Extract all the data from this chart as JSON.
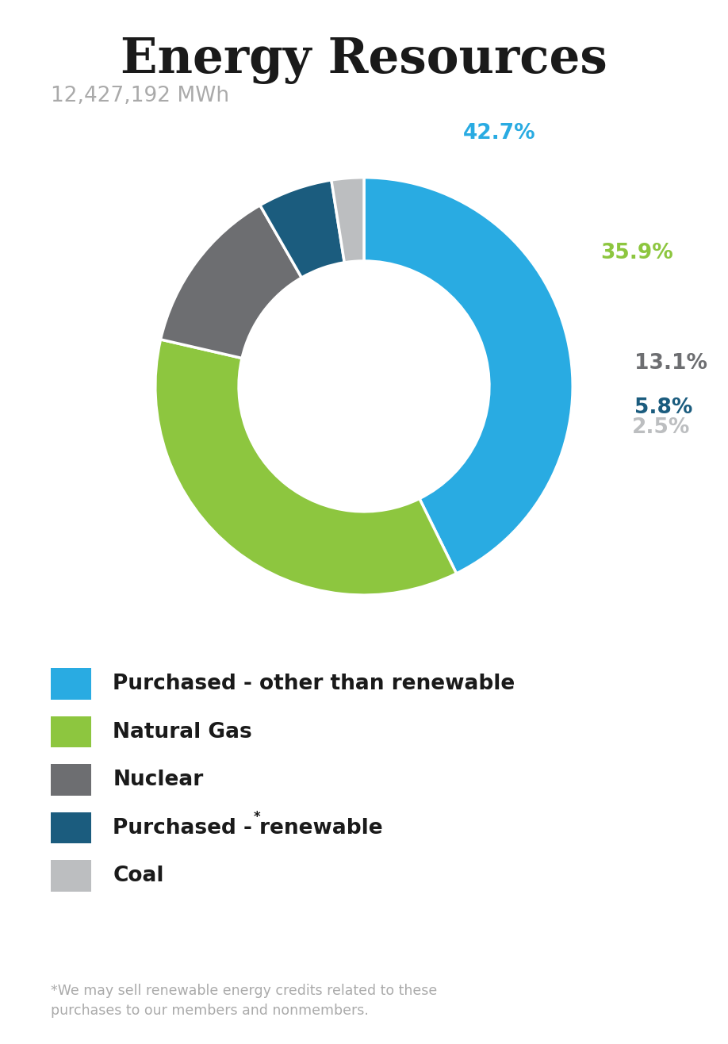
{
  "title": "Energy Resources",
  "subtitle": "12,427,192 MWh",
  "title_color": "#1a1a1a",
  "subtitle_color": "#aaaaaa",
  "slices": [
    42.7,
    35.9,
    13.1,
    5.8,
    2.5
  ],
  "slice_colors": [
    "#29abe2",
    "#8dc63f",
    "#6d6e71",
    "#1b5c7e",
    "#bcbec0"
  ],
  "slice_labels": [
    "42.7%",
    "35.9%",
    "13.1%",
    "5.8%",
    "2.5%"
  ],
  "label_colors": [
    "#29abe2",
    "#8dc63f",
    "#6d6e71",
    "#1b5c7e",
    "#bcbec0"
  ],
  "legend_labels": [
    "Purchased - other than renewable",
    "Natural Gas",
    "Nuclear",
    "Purchased - renewable*",
    "Coal"
  ],
  "legend_colors": [
    "#29abe2",
    "#8dc63f",
    "#6d6e71",
    "#1b5c7e",
    "#bcbec0"
  ],
  "footnote": "*We may sell renewable energy credits related to these\npurchases to our members and nonmembers.",
  "footnote_color": "#aaaaaa",
  "background_color": "#ffffff"
}
